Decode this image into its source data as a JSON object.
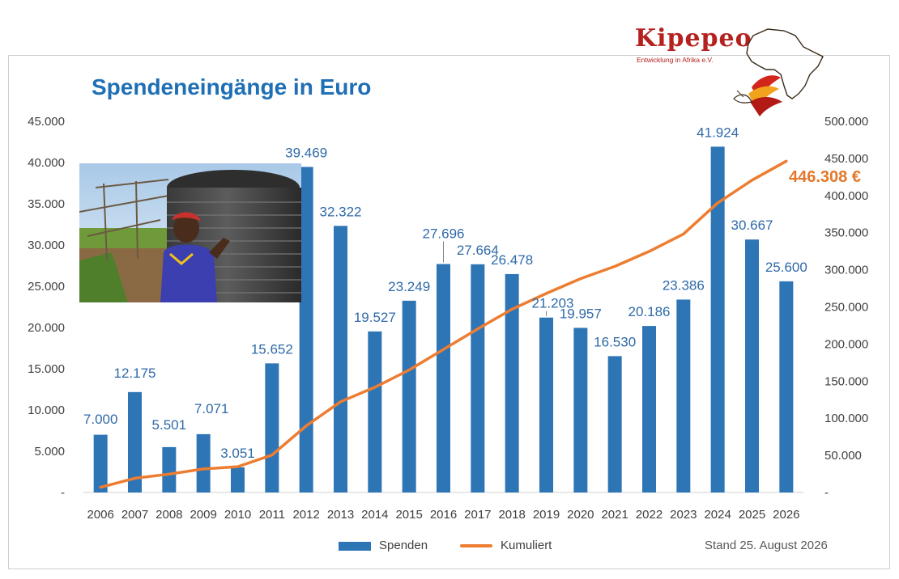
{
  "title": "Spendeneingänge in Euro",
  "logo": {
    "name": "Kipepeo",
    "subtitle": "Entwicklung in Afrika e.V."
  },
  "stand": "Stand 25. August 2026",
  "total_label": "446.308 €",
  "colors": {
    "bar": "#2e75b6",
    "line": "#ed7d31",
    "title": "#1f6fb5",
    "label": "#2f6aa8"
  },
  "chart_data": {
    "type": "bar",
    "title": "Spendeneingänge in Euro",
    "categories": [
      "2006",
      "2007",
      "2008",
      "2009",
      "2010",
      "2011",
      "2012",
      "2013",
      "2014",
      "2015",
      "2016",
      "2017",
      "2018",
      "2019",
      "2020",
      "2021",
      "2022",
      "2023",
      "2024",
      "2025",
      "2026"
    ],
    "series": [
      {
        "name": "Spenden",
        "type": "bar",
        "axis": "left",
        "values": [
          7000,
          12175,
          5501,
          7071,
          3051,
          15652,
          39469,
          32322,
          19527,
          23249,
          27696,
          27664,
          26478,
          21203,
          19957,
          16530,
          20186,
          23386,
          41924,
          30667,
          25600
        ],
        "labels": [
          "7.000",
          "12.175",
          "5.501",
          "7.071",
          "3.051",
          "15.652",
          "39.469",
          "32.322",
          "19.527",
          "23.249",
          "27.696",
          "27.664",
          "26.478",
          "21.203",
          "19.957",
          "16.530",
          "20.186",
          "23.386",
          "41.924",
          "30.667",
          "25.600"
        ]
      },
      {
        "name": "Kumuliert",
        "type": "line",
        "axis": "right",
        "values": [
          7000,
          19175,
          24676,
          31747,
          34798,
          50450,
          89919,
          122241,
          141768,
          165017,
          192713,
          220377,
          246855,
          268058,
          288015,
          304545,
          324731,
          348117,
          390041,
          420708,
          446308
        ]
      }
    ],
    "ylim_left": [
      0,
      45000
    ],
    "ylim_right": [
      0,
      500000
    ],
    "yticks_left": [
      "-",
      "5.000",
      "10.000",
      "15.000",
      "20.000",
      "25.000",
      "30.000",
      "35.000",
      "40.000",
      "45.000"
    ],
    "yticks_right": [
      "-",
      "50.000",
      "100.000",
      "150.000",
      "200.000",
      "250.000",
      "300.000",
      "350.000",
      "400.000",
      "450.000",
      "500.000"
    ],
    "grid": false,
    "legend": "bottom"
  }
}
